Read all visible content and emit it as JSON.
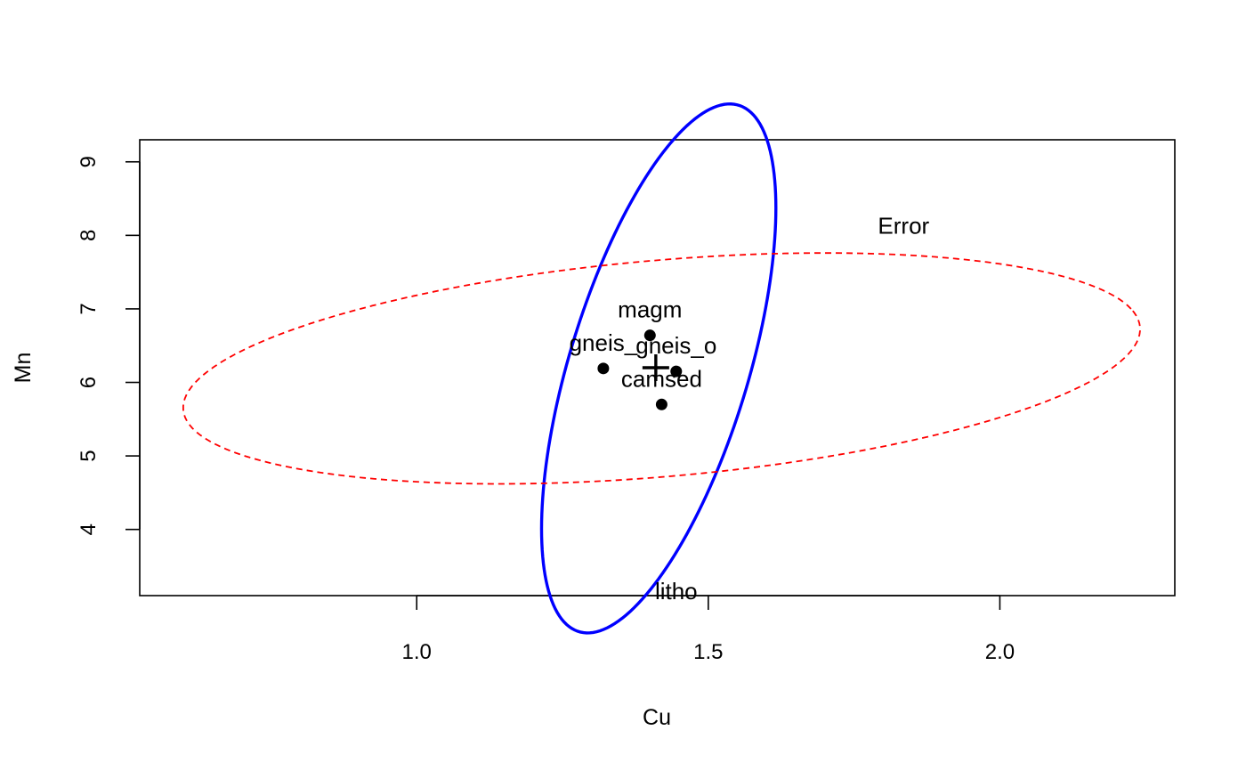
{
  "chart_data": {
    "type": "scatter",
    "title": "",
    "xlabel": "Cu",
    "ylabel": "Mn",
    "xlim": [
      0.525,
      2.3
    ],
    "ylim": [
      3.1,
      9.3
    ],
    "x_ticks": [
      1.0,
      1.5,
      2.0
    ],
    "x_tick_labels": [
      "1.0",
      "1.5",
      "2.0"
    ],
    "y_ticks": [
      4,
      5,
      6,
      7,
      8,
      9
    ],
    "y_tick_labels": [
      "4",
      "5",
      "6",
      "7",
      "8",
      "9"
    ],
    "grid": false,
    "points": [
      {
        "label": "magm",
        "x": 1.4,
        "y": 6.64
      },
      {
        "label": "gneis_",
        "x": 1.32,
        "y": 6.19
      },
      {
        "label": "gneis_o",
        "x": 1.445,
        "y": 6.15
      },
      {
        "label": "camsed",
        "x": 1.42,
        "y": 5.7
      }
    ],
    "centroid": {
      "x": 1.41,
      "y": 6.2
    },
    "ellipses": [
      {
        "name": "litho",
        "color": "#0000ff",
        "style": "solid",
        "center": {
          "x": 1.415,
          "y": 6.19
        },
        "shape": [
          [
            0.0,
            2.86
          ],
          [
            0.267,
            2.19
          ],
          [
            0.174,
            0.46
          ],
          [
            0.0,
            -2.86
          ],
          [
            -0.267,
            -2.19
          ],
          [
            -0.174,
            -0.46
          ]
        ],
        "label": "litho",
        "label_pos": {
          "x": 1.445,
          "y": 3.05
        }
      },
      {
        "name": "Error",
        "color": "#ff0000",
        "style": "dashed",
        "center": {
          "x": 1.42,
          "y": 6.19
        },
        "shape": [
          [
            0.805,
            0.81
          ],
          [
            0.42,
            1.59
          ],
          [
            -0.54,
            0.76
          ],
          [
            -0.805,
            -0.81
          ],
          [
            -0.42,
            -1.59
          ],
          [
            0.54,
            -0.76
          ]
        ],
        "label": "Error",
        "label_pos": {
          "x": 1.835,
          "y": 8.02
        }
      }
    ]
  }
}
